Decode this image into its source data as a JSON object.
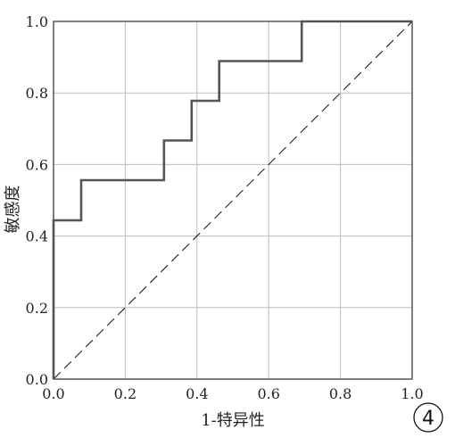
{
  "panel_label": "4",
  "chart_data": {
    "type": "line",
    "title": "",
    "xlabel": "1-特异性",
    "ylabel": "敏感度",
    "xlim": [
      0.0,
      1.0
    ],
    "ylim": [
      0.0,
      1.0
    ],
    "xticks": [
      "0.0",
      "0.2",
      "0.4",
      "0.6",
      "0.8",
      "1.0"
    ],
    "yticks": [
      "0.0",
      "0.2",
      "0.4",
      "0.6",
      "0.8",
      "1.0"
    ],
    "grid": true,
    "legend": "none",
    "series": [
      {
        "style": "solid",
        "color": "#555555",
        "x": [
          0.0,
          0.0,
          0.077,
          0.077,
          0.308,
          0.308,
          0.385,
          0.385,
          0.462,
          0.462,
          0.692,
          0.692,
          1.0
        ],
        "y": [
          0.0,
          0.444,
          0.444,
          0.556,
          0.556,
          0.667,
          0.667,
          0.778,
          0.778,
          0.889,
          0.889,
          1.0,
          1.0
        ]
      },
      {
        "style": "dashed",
        "color": "#222222",
        "x": [
          0.0,
          1.0
        ],
        "y": [
          0.0,
          1.0
        ]
      }
    ]
  }
}
